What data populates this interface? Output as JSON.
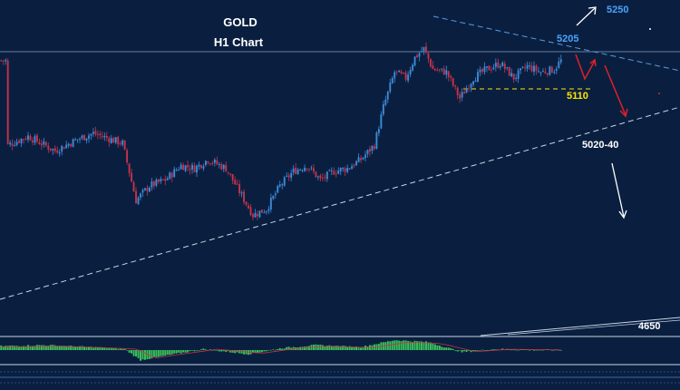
{
  "chart_data": {
    "type": "candlestick",
    "title": "GOLD",
    "subtitle": "H1 Chart",
    "colors": {
      "background": "#0a1f3f",
      "bull": "#3d8bd9",
      "bear": "#c8324a",
      "level_label": "#4aa3ff",
      "support_label": "#ffe600",
      "bearish_arrow": "#e0202a",
      "macd_hist": "#39c15a"
    },
    "levels": [
      {
        "name": "target-high",
        "value": 5250,
        "label": "5250",
        "color": "#4aa3ff"
      },
      {
        "name": "resistance",
        "value": 5205,
        "label": "5205",
        "color": "#4aa3ff"
      },
      {
        "name": "support",
        "value": 5110,
        "label": "5110",
        "color": "#ffe600"
      },
      {
        "name": "target-mid",
        "value": 5030,
        "label": "5020-40",
        "color": "#ffffff"
      },
      {
        "name": "target-low",
        "value": 4650,
        "label": "4650",
        "color": "#ffffff"
      }
    ],
    "anchors": [
      {
        "t": 3,
        "close": 5045
      },
      {
        "t": 12,
        "close": 5060
      },
      {
        "t": 24,
        "close": 5035
      },
      {
        "t": 34,
        "close": 5055
      },
      {
        "t": 41,
        "close": 5065
      },
      {
        "t": 54,
        "close": 5048
      },
      {
        "t": 60,
        "close": 4950
      },
      {
        "t": 66,
        "close": 4975
      },
      {
        "t": 73,
        "close": 4985
      },
      {
        "t": 80,
        "close": 5010
      },
      {
        "t": 86,
        "close": 5005
      },
      {
        "t": 92,
        "close": 5020
      },
      {
        "t": 100,
        "close": 5005
      },
      {
        "t": 106,
        "close": 4965
      },
      {
        "t": 112,
        "close": 4925
      },
      {
        "t": 118,
        "close": 4935
      },
      {
        "t": 124,
        "close": 4975
      },
      {
        "t": 130,
        "close": 5000
      },
      {
        "t": 136,
        "close": 5010
      },
      {
        "t": 142,
        "close": 4985
      },
      {
        "t": 148,
        "close": 5000
      },
      {
        "t": 154,
        "close": 5005
      },
      {
        "t": 160,
        "close": 5020
      },
      {
        "t": 166,
        "close": 5045
      },
      {
        "t": 170,
        "close": 5110
      },
      {
        "t": 175,
        "close": 5170
      },
      {
        "t": 180,
        "close": 5160
      },
      {
        "t": 184,
        "close": 5195
      },
      {
        "t": 188,
        "close": 5210
      },
      {
        "t": 192,
        "close": 5175
      },
      {
        "t": 198,
        "close": 5170
      },
      {
        "t": 204,
        "close": 5125
      },
      {
        "t": 210,
        "close": 5160
      },
      {
        "t": 216,
        "close": 5175
      },
      {
        "t": 222,
        "close": 5185
      },
      {
        "t": 228,
        "close": 5160
      },
      {
        "t": 234,
        "close": 5180
      },
      {
        "t": 240,
        "close": 5170
      },
      {
        "t": 246,
        "close": 5175
      },
      {
        "t": 249,
        "close": 5190
      }
    ],
    "macd_hist": [
      {
        "t": 0,
        "v": 0.4
      },
      {
        "t": 20,
        "v": 0.5
      },
      {
        "t": 40,
        "v": 0.3
      },
      {
        "t": 55,
        "v": 0.1
      },
      {
        "t": 62,
        "v": -1
      },
      {
        "t": 72,
        "v": -0.6
      },
      {
        "t": 90,
        "v": 0.1
      },
      {
        "t": 110,
        "v": -0.4
      },
      {
        "t": 125,
        "v": 0.2
      },
      {
        "t": 140,
        "v": 0.5
      },
      {
        "t": 160,
        "v": 0.3
      },
      {
        "t": 175,
        "v": 1
      },
      {
        "t": 190,
        "v": 0.8
      },
      {
        "t": 205,
        "v": -0.2
      },
      {
        "t": 220,
        "v": 0.1
      },
      {
        "t": 249,
        "v": 0
      }
    ]
  }
}
